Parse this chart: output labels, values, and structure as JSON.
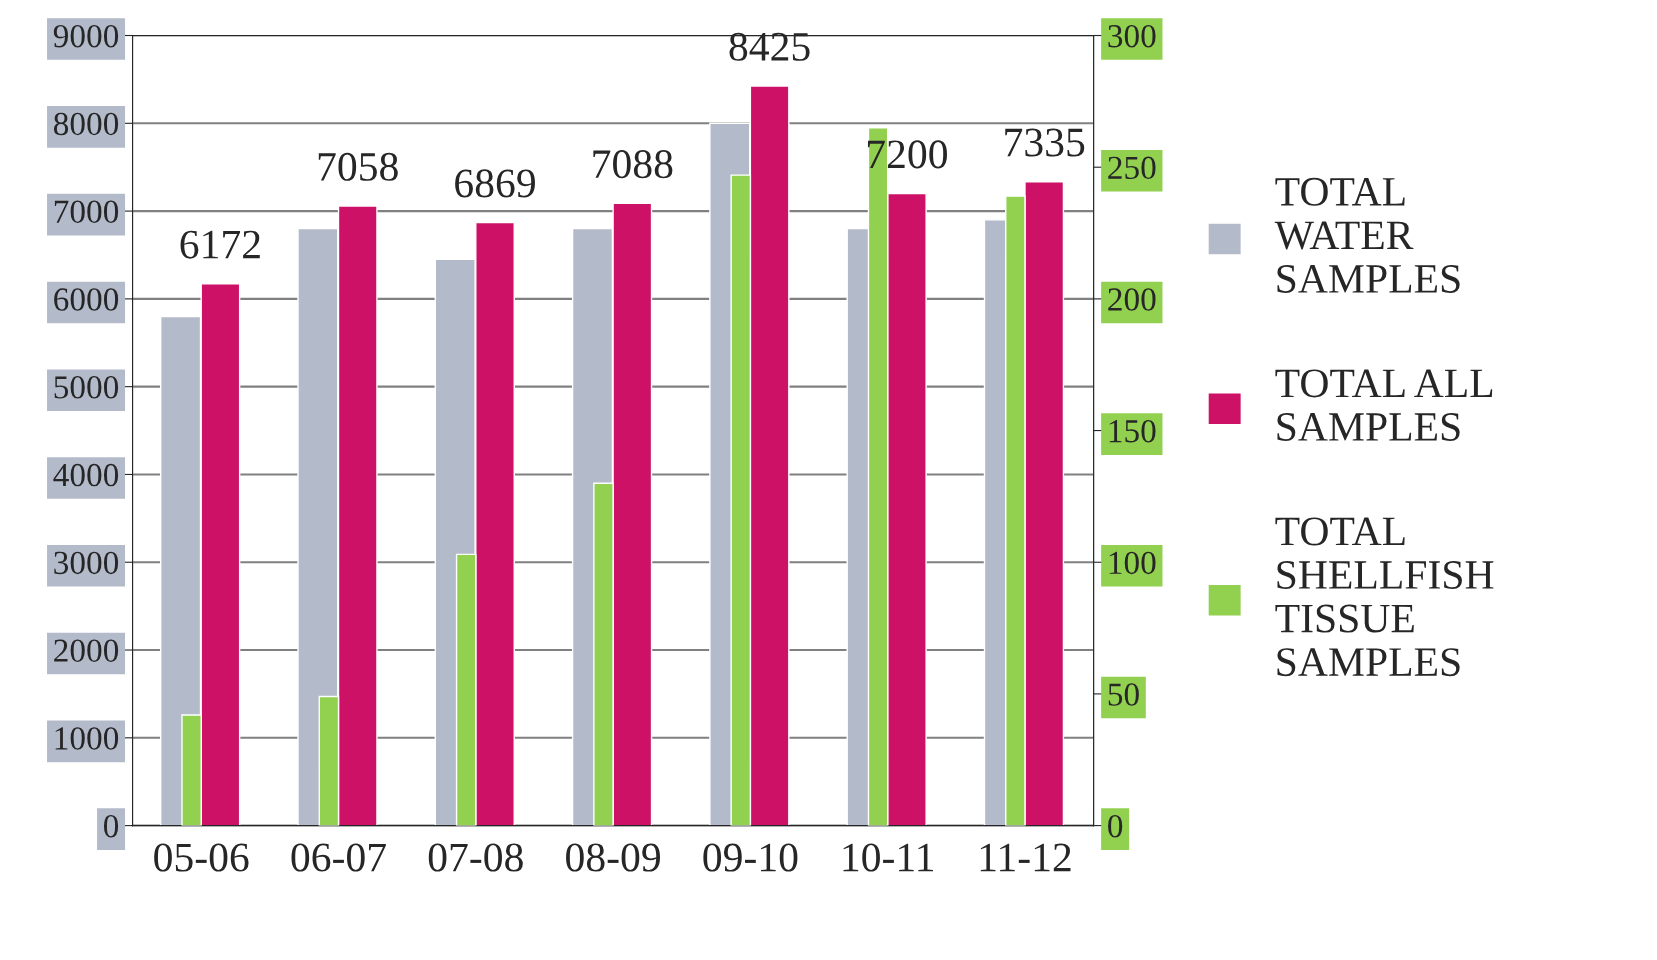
{
  "chart_data": {
    "type": "bar",
    "categories": [
      "05-06",
      "06-07",
      "07-08",
      "08-09",
      "09-10",
      "10-11",
      "11-12"
    ],
    "series": [
      {
        "name": "TOTAL WATER SAMPLES",
        "color": "#b3bac9",
        "values": [
          5800,
          6800,
          6450,
          6800,
          8000,
          6800,
          6900
        ]
      },
      {
        "name": "TOTAL ALL SAMPLES",
        "color": "#cc1166",
        "values": [
          6172,
          7058,
          6869,
          7088,
          8425,
          7200,
          7335
        ],
        "value_labels": [
          "6172",
          "7058",
          "6869",
          "7088",
          "8425",
          "7200",
          "7335"
        ]
      },
      {
        "name": "TOTAL SHELLFISH TISSUE SAMPLES",
        "color": "#92d050",
        "axis": "y2",
        "values": [
          42,
          49,
          103,
          130,
          247,
          265,
          239
        ]
      }
    ],
    "ylim": [
      0,
      9000
    ],
    "yticks": [
      0,
      1000,
      2000,
      3000,
      4000,
      5000,
      6000,
      7000,
      8000,
      9000
    ],
    "y2lim": [
      0,
      300
    ],
    "y2ticks": [
      0,
      50,
      100,
      150,
      200,
      250,
      300
    ],
    "grid": "y",
    "legend": "right"
  }
}
